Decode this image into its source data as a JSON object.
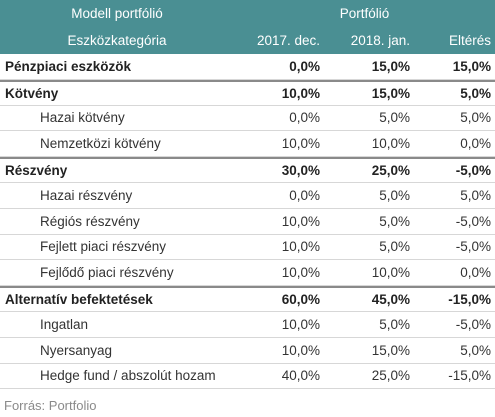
{
  "header": {
    "title": "Modell portfólió",
    "portfolio_label": "Portfólió",
    "category_label": "Eszközkategória",
    "col_2017": "2017. dec.",
    "col_2018": "2018. jan.",
    "col_diff": "Eltérés"
  },
  "rows": [
    {
      "label": "Pénzpiaci eszközök",
      "v2017": "0,0%",
      "v2018": "15,0%",
      "diff": "15,0%"
    },
    {
      "label": "Kötvény",
      "v2017": "10,0%",
      "v2018": "15,0%",
      "diff": "5,0%"
    },
    {
      "label": "Hazai kötvény",
      "v2017": "0,0%",
      "v2018": "5,0%",
      "diff": "5,0%"
    },
    {
      "label": "Nemzetközi kötvény",
      "v2017": "10,0%",
      "v2018": "10,0%",
      "diff": "0,0%"
    },
    {
      "label": "Részvény",
      "v2017": "30,0%",
      "v2018": "25,0%",
      "diff": "-5,0%"
    },
    {
      "label": "Hazai részvény",
      "v2017": "0,0%",
      "v2018": "5,0%",
      "diff": "5,0%"
    },
    {
      "label": "Régiós részvény",
      "v2017": "10,0%",
      "v2018": "5,0%",
      "diff": "-5,0%"
    },
    {
      "label": "Fejlett piaci részvény",
      "v2017": "10,0%",
      "v2018": "5,0%",
      "diff": "-5,0%"
    },
    {
      "label": "Fejlődő piaci részvény",
      "v2017": "10,0%",
      "v2018": "10,0%",
      "diff": "0,0%"
    },
    {
      "label": "Alternatív befektetések",
      "v2017": "60,0%",
      "v2018": "45,0%",
      "diff": "-15,0%"
    },
    {
      "label": "Ingatlan",
      "v2017": "10,0%",
      "v2018": "5,0%",
      "diff": "-5,0%"
    },
    {
      "label": "Nyersanyag",
      "v2017": "10,0%",
      "v2018": "15,0%",
      "diff": "5,0%"
    },
    {
      "label": "Hedge fund / abszolút hozam",
      "v2017": "40,0%",
      "v2018": "25,0%",
      "diff": "-15,0%"
    }
  ],
  "source": "Forrás: Portfolio",
  "colors": {
    "header_bg": "#4a8f93",
    "header_text": "#ffffff",
    "source_text": "#8a8a8a"
  }
}
